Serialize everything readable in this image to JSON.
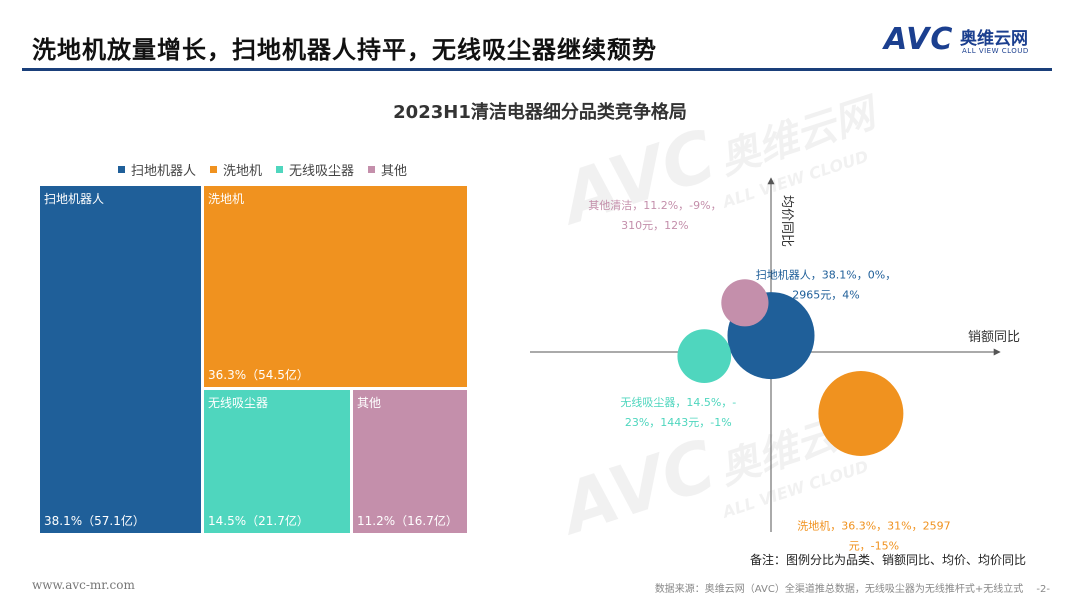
{
  "slide": {
    "title": "洗地机放量增长，扫地机器人持平，无线吸尘器继续颓势",
    "note": "备注：图例分比为品类、销额同比、均价、均价同比",
    "website": "www.avc-mr.com",
    "source": "数据来源：奥维云网（AVC）全渠道推总数据，无线吸尘器为无线推杆式+无线立式",
    "page_number": "-2-"
  },
  "logo": {
    "brand": "AVC",
    "cn_name": "奥维云网",
    "en_name": "ALL VIEW CLOUD"
  },
  "watermarks": [
    {
      "brand": "AVC",
      "cn_name": "奥维云网",
      "en_name": "ALL VIEW CLOUD"
    },
    {
      "brand": "AVC",
      "cn_name": "奥维云网",
      "en_name": "ALL VIEW CLOUD"
    }
  ],
  "colors": {
    "扫地机器人": "#1f5f99",
    "洗地机": "#f0921f",
    "无线吸尘器": "#4fd6be",
    "其他": "#c48fab",
    "title_rule": "#1a3f7a"
  },
  "chart_data": [
    {
      "type": "treemap",
      "title": "2023H1清洁电器细分品类竞争格局",
      "legend": [
        "扫地机器人",
        "洗地机",
        "无线吸尘器",
        "其他"
      ],
      "legend_position": "top",
      "items": [
        {
          "name": "扫地机器人",
          "share_pct": 38.1,
          "sales_yi": 57.1,
          "value_text": "38.1%（57.1亿）"
        },
        {
          "name": "洗地机",
          "share_pct": 36.3,
          "sales_yi": 54.5,
          "value_text": "36.3%（54.5亿）"
        },
        {
          "name": "无线吸尘器",
          "share_pct": 14.5,
          "sales_yi": 21.7,
          "value_text": "14.5%（21.7亿）"
        },
        {
          "name": "其他",
          "share_pct": 11.2,
          "sales_yi": 16.7,
          "value_text": "11.2%（16.7亿）"
        }
      ]
    },
    {
      "type": "bubble",
      "xlabel": "销额同比",
      "ylabel": "均价同比",
      "xlim": [
        -45,
        45
      ],
      "ylim": [
        -45,
        45
      ],
      "points": [
        {
          "name": "扫地机器人",
          "x": 0,
          "y": 4,
          "share_pct": 38.1,
          "label_lines": [
            "扫地机器人，38.1%，0%，",
            "2965元，4%"
          ]
        },
        {
          "name": "洗地机",
          "x": 31,
          "y": -15,
          "share_pct": 36.3,
          "label_lines": [
            "洗地机，36.3%，31%，2597",
            "元，-15%"
          ]
        },
        {
          "name": "无线吸尘器",
          "x": -23,
          "y": -1,
          "share_pct": 14.5,
          "label_lines": [
            "无线吸尘器，14.5%，-",
            "23%，1443元，-1%"
          ]
        },
        {
          "name": "其他",
          "x": -9,
          "y": 12,
          "share_pct": 11.2,
          "label_lines": [
            "其他清洁，11.2%，-9%，",
            "310元，12%"
          ]
        }
      ]
    }
  ]
}
